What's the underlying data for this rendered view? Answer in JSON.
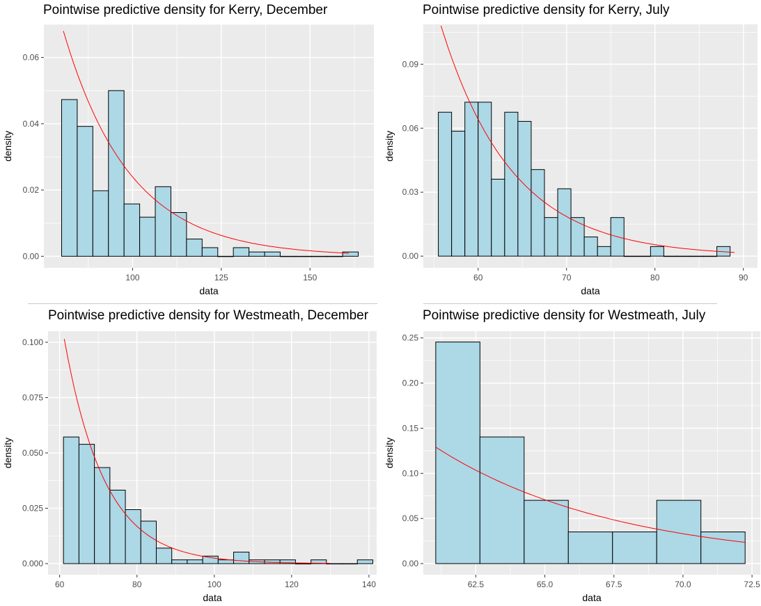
{
  "chart_data": [
    {
      "type": "bar",
      "subtype": "histogram_with_density_curve",
      "title": "Pointwise predictive density for Kerry, December",
      "xlabel": "data",
      "ylabel": "density",
      "xlim": [
        75,
        168
      ],
      "ylim": [
        -0.0035,
        0.07
      ],
      "xticks": [
        100,
        125,
        150
      ],
      "yticks": [
        0,
        0.02,
        0.04,
        0.06
      ],
      "ytick_labels": [
        "0.00",
        "0.02",
        "0.04",
        "0.06"
      ],
      "bin_width": 4.4,
      "bin_start": 80,
      "values": [
        0.0473,
        0.0392,
        0.0198,
        0.05,
        0.0158,
        0.0118,
        0.021,
        0.0132,
        0.0052,
        0.0026,
        0,
        0.0026,
        0.0013,
        0.0013,
        0,
        0,
        0,
        0,
        0.0013
      ],
      "curve": {
        "color": "#ff0000",
        "x_start": 80.5,
        "x_end": 161,
        "y_start": 0.068,
        "rate": 0.0535
      },
      "colors": {
        "bar_fill": "#add8e6",
        "bar_stroke": "#000000",
        "panel_bg": "#ebebeb",
        "grid": "#ffffff"
      },
      "grid": true
    },
    {
      "type": "bar",
      "subtype": "histogram_with_density_curve",
      "title": "Pointwise predictive density for Kerry, July",
      "xlabel": "data",
      "ylabel": "density",
      "xlim": [
        53.8,
        91.6
      ],
      "ylim": [
        -0.0055,
        0.1087
      ],
      "xticks": [
        60,
        70,
        80,
        90
      ],
      "yticks": [
        0,
        0.03,
        0.06,
        0.09
      ],
      "ytick_labels": [
        "0.00",
        "0.03",
        "0.06",
        "0.09"
      ],
      "bin_width": 1.5,
      "bin_start": 55.5,
      "values": [
        0.0675,
        0.0586,
        0.0722,
        0.0722,
        0.0361,
        0.0675,
        0.0632,
        0.0406,
        0.0181,
        0.0316,
        0.0181,
        0.009,
        0.0045,
        0.0181,
        0,
        0,
        0.0045,
        0,
        0,
        0,
        0,
        0.0045
      ],
      "curve": {
        "color": "#ff0000",
        "x_start": 55.8,
        "x_end": 89,
        "y_start": 0.108,
        "rate": 0.124
      },
      "colors": {
        "bar_fill": "#add8e6",
        "bar_stroke": "#000000",
        "panel_bg": "#ebebeb",
        "grid": "#ffffff"
      },
      "grid": true
    },
    {
      "type": "bar",
      "subtype": "histogram_with_density_curve",
      "title": "Pointwise predictive density for Westmeath, December",
      "xlabel": "data",
      "ylabel": "density",
      "xlim": [
        57,
        142
      ],
      "ylim": [
        -0.005,
        0.105
      ],
      "xticks": [
        60,
        80,
        100,
        120,
        140
      ],
      "yticks": [
        0,
        0.025,
        0.05,
        0.075,
        0.1
      ],
      "ytick_labels": [
        "0.000",
        "0.025",
        "0.050",
        "0.075",
        "0.100"
      ],
      "bin_width": 4,
      "bin_start": 61,
      "values": [
        0.0572,
        0.0539,
        0.0434,
        0.0332,
        0.0244,
        0.0192,
        0.007,
        0.0017,
        0.0017,
        0.0034,
        0.0017,
        0.0052,
        0.0017,
        0.0017,
        0.0017,
        0,
        0.0017,
        0,
        0,
        0.0017
      ],
      "curve": {
        "color": "#ff0000",
        "x_start": 61.2,
        "x_end": 130,
        "y_start": 0.1015,
        "rate": 0.0955
      },
      "colors": {
        "bar_fill": "#add8e6",
        "bar_stroke": "#000000",
        "panel_bg": "#ebebeb",
        "grid": "#ffffff"
      },
      "grid": true
    },
    {
      "type": "bar",
      "subtype": "histogram_with_density_curve",
      "title": "Pointwise predictive density for Westmeath, July",
      "xlabel": "data",
      "ylabel": "density",
      "xlim": [
        60.6,
        72.8
      ],
      "ylim": [
        -0.0123,
        0.2575
      ],
      "xticks": [
        62.5,
        65,
        67.5,
        70,
        72.5
      ],
      "xtick_labels": [
        "62.5",
        "65.0",
        "67.5",
        "70.0",
        "72.5"
      ],
      "yticks": [
        0,
        0.05,
        0.1,
        0.15,
        0.2,
        0.25
      ],
      "ytick_labels": [
        "0.00",
        "0.05",
        "0.10",
        "0.15",
        "0.20",
        "0.25"
      ],
      "bin_width": 1.6,
      "bin_start": 61.05,
      "values": [
        0.2455,
        0.1403,
        0.0701,
        0.0351,
        0.0351,
        0.0701,
        0.0351
      ],
      "curve": {
        "color": "#ff0000",
        "x_start": 61.05,
        "x_end": 72.25,
        "y_start": 0.129,
        "rate": 0.152
      },
      "colors": {
        "bar_fill": "#add8e6",
        "bar_stroke": "#000000",
        "panel_bg": "#ebebeb",
        "grid": "#ffffff"
      },
      "grid": true
    }
  ]
}
